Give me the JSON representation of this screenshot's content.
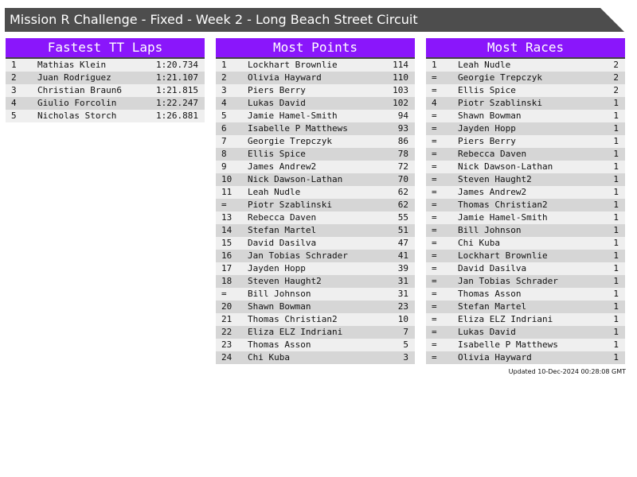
{
  "title": "Mission R Challenge - Fixed - Week 2 - Long Beach Street Circuit",
  "colors": {
    "header": "#8a16fb",
    "titlebar": "#4d4d4d"
  },
  "tables": [
    {
      "title": "Fastest TT Laps",
      "rows": [
        [
          "1",
          "Mathias Klein",
          "1:20.734"
        ],
        [
          "2",
          "Juan Rodriguez",
          "1:21.107"
        ],
        [
          "3",
          "Christian Braun6",
          "1:21.815"
        ],
        [
          "4",
          "Giulio Forcolin",
          "1:22.247"
        ],
        [
          "5",
          "Nicholas Storch",
          "1:26.881"
        ]
      ]
    },
    {
      "title": "Most Points",
      "rows": [
        [
          "1",
          "Lockhart Brownlie",
          "114"
        ],
        [
          "2",
          "Olivia Hayward",
          "110"
        ],
        [
          "3",
          "Piers Berry",
          "103"
        ],
        [
          "4",
          "Lukas David",
          "102"
        ],
        [
          "5",
          "Jamie Hamel-Smith",
          "94"
        ],
        [
          "6",
          "Isabelle P Matthews",
          "93"
        ],
        [
          "7",
          "Georgie Trepczyk",
          "86"
        ],
        [
          "8",
          "Ellis Spice",
          "78"
        ],
        [
          "9",
          "James Andrew2",
          "72"
        ],
        [
          "10",
          "Nick Dawson-Lathan",
          "70"
        ],
        [
          "11",
          "Leah Nudle",
          "62"
        ],
        [
          "=",
          "Piotr Szablinski",
          "62"
        ],
        [
          "13",
          "Rebecca Daven",
          "55"
        ],
        [
          "14",
          "Stefan Martel",
          "51"
        ],
        [
          "15",
          "David Dasilva",
          "47"
        ],
        [
          "16",
          "Jan Tobias Schrader",
          "41"
        ],
        [
          "17",
          "Jayden Hopp",
          "39"
        ],
        [
          "18",
          "Steven Haught2",
          "31"
        ],
        [
          "=",
          "Bill Johnson",
          "31"
        ],
        [
          "20",
          "Shawn Bowman",
          "23"
        ],
        [
          "21",
          "Thomas Christian2",
          "10"
        ],
        [
          "22",
          "Eliza ELZ Indriani",
          "7"
        ],
        [
          "23",
          "Thomas Asson",
          "5"
        ],
        [
          "24",
          "Chi Kuba",
          "3"
        ]
      ]
    },
    {
      "title": "Most Races",
      "rows": [
        [
          "1",
          "Leah Nudle",
          "2"
        ],
        [
          "=",
          "Georgie Trepczyk",
          "2"
        ],
        [
          "=",
          "Ellis Spice",
          "2"
        ],
        [
          "4",
          "Piotr Szablinski",
          "1"
        ],
        [
          "=",
          "Shawn Bowman",
          "1"
        ],
        [
          "=",
          "Jayden Hopp",
          "1"
        ],
        [
          "=",
          "Piers Berry",
          "1"
        ],
        [
          "=",
          "Rebecca Daven",
          "1"
        ],
        [
          "=",
          "Nick Dawson-Lathan",
          "1"
        ],
        [
          "=",
          "Steven Haught2",
          "1"
        ],
        [
          "=",
          "James Andrew2",
          "1"
        ],
        [
          "=",
          "Thomas Christian2",
          "1"
        ],
        [
          "=",
          "Jamie Hamel-Smith",
          "1"
        ],
        [
          "=",
          "Bill Johnson",
          "1"
        ],
        [
          "=",
          "Chi Kuba",
          "1"
        ],
        [
          "=",
          "Lockhart Brownlie",
          "1"
        ],
        [
          "=",
          "David Dasilva",
          "1"
        ],
        [
          "=",
          "Jan Tobias Schrader",
          "1"
        ],
        [
          "=",
          "Thomas Asson",
          "1"
        ],
        [
          "=",
          "Stefan Martel",
          "1"
        ],
        [
          "=",
          "Eliza ELZ Indriani",
          "1"
        ],
        [
          "=",
          "Lukas David",
          "1"
        ],
        [
          "=",
          "Isabelle P Matthews",
          "1"
        ],
        [
          "=",
          "Olivia Hayward",
          "1"
        ]
      ]
    }
  ],
  "updated": "Updated 10-Dec-2024 00:28:08 GMT"
}
